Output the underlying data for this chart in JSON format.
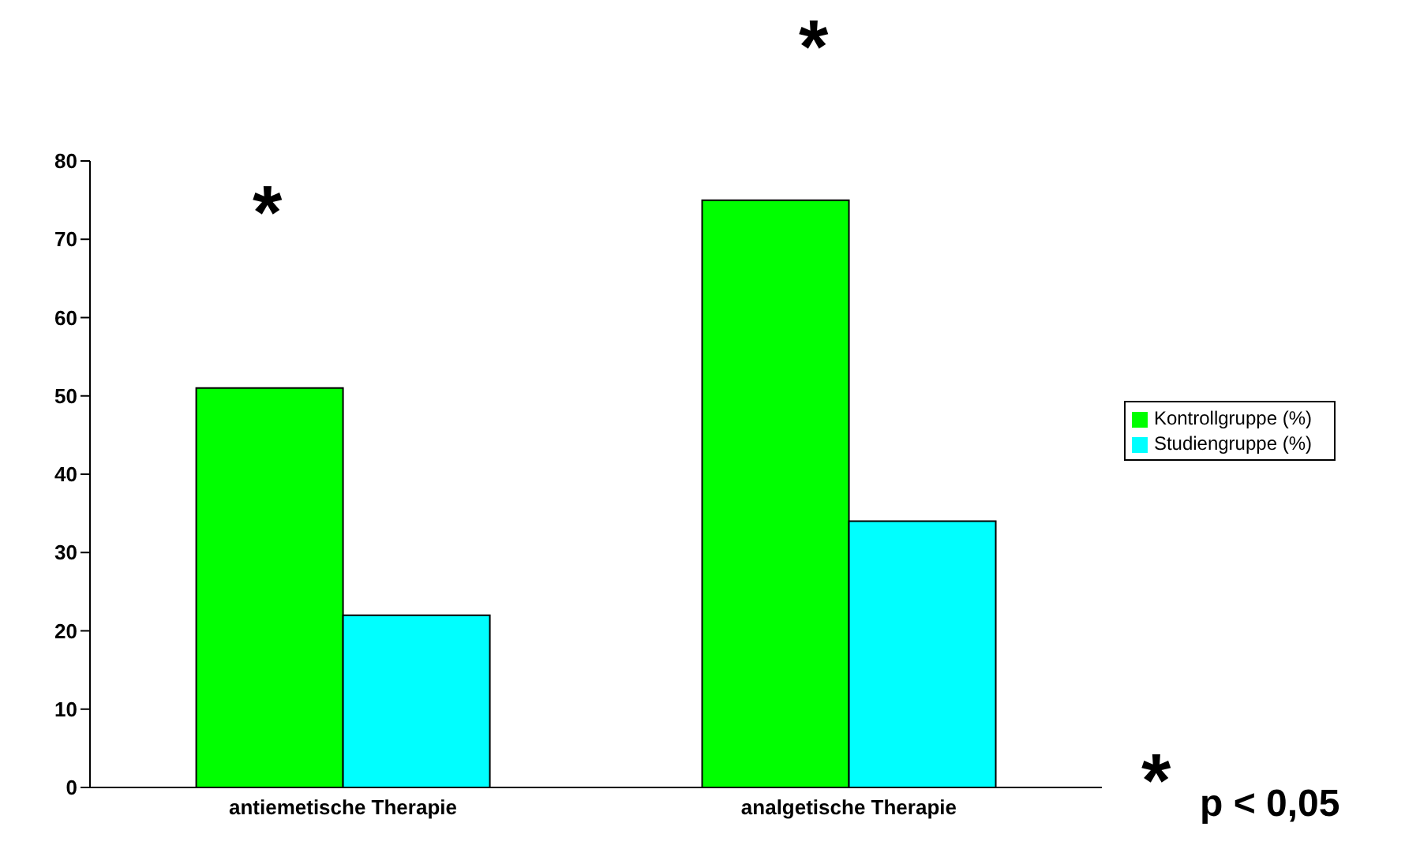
{
  "chart_data": {
    "type": "bar",
    "categories": [
      "antiemetische Therapie",
      "analgetische Therapie"
    ],
    "series": [
      {
        "name": "Kontrollgruppe (%)",
        "color": "#00ff00",
        "values": [
          51,
          75
        ]
      },
      {
        "name": "Studiengruppe (%)",
        "color": "#00ffff",
        "values": [
          22,
          34
        ]
      }
    ],
    "ylim": [
      0,
      80
    ],
    "yticks": [
      0,
      10,
      20,
      30,
      40,
      50,
      60,
      70,
      80
    ],
    "grid": false,
    "legend": "right",
    "annotations": [
      "*",
      "*",
      "*",
      "p < 0,05"
    ]
  }
}
